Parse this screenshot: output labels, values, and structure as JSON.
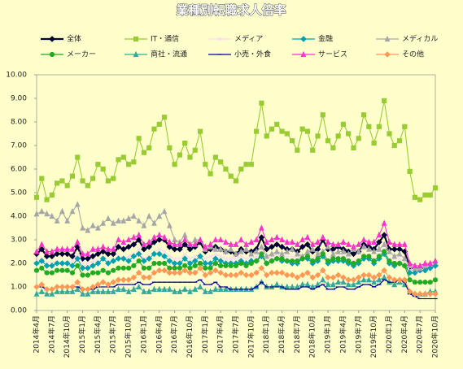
{
  "chart_data": {
    "type": "line",
    "title": "業種別転職求人倍率",
    "categories": [
      "2014年4月",
      null,
      null,
      "2014年7月",
      null,
      null,
      "2014年10月",
      null,
      null,
      "2015年1月",
      null,
      null,
      "2015年4月",
      null,
      null,
      "2015年7月",
      null,
      null,
      "2015年10月",
      null,
      null,
      "2016年1月",
      null,
      null,
      "2016年4月",
      null,
      null,
      "2016年7月",
      null,
      null,
      "2016年10月",
      null,
      null,
      "2017年1月",
      null,
      null,
      "2017年4月",
      null,
      null,
      "2017年7月",
      null,
      null,
      "2017年10月",
      null,
      null,
      "2018年1月",
      null,
      null,
      "2018年4月",
      null,
      null,
      "2018年7月",
      null,
      null,
      "2018年10月",
      null,
      null,
      "2019年1月",
      null,
      null,
      "2019年4月",
      null,
      null,
      "2019年7月",
      null,
      null,
      "2019年10月",
      null,
      null,
      "2020年1月",
      null,
      null,
      "2020年4月",
      null,
      null,
      "2020年7月",
      null,
      null,
      "2020年10月"
    ],
    "ylim": [
      0,
      10
    ],
    "yticks": [
      {
        "value": 0,
        "label": "0.00"
      },
      {
        "value": 1,
        "label": "1.00"
      },
      {
        "value": 2,
        "label": "2.00"
      },
      {
        "value": 3,
        "label": "3.00"
      },
      {
        "value": 4,
        "label": "4.00"
      },
      {
        "value": 5,
        "label": "5.00"
      },
      {
        "value": 6,
        "label": "6.00"
      },
      {
        "value": 7,
        "label": "7.00"
      },
      {
        "value": 8,
        "label": "8.00"
      },
      {
        "value": 9,
        "label": "9.00"
      },
      {
        "value": 10,
        "label": "10.00"
      }
    ],
    "grid": false,
    "series": [
      {
        "name": "全体",
        "color": "#000033",
        "marker": "diamond",
        "values": [
          2.4,
          2.6,
          2.3,
          2.3,
          2.4,
          2.4,
          2.4,
          2.3,
          2.7,
          2.2,
          2.2,
          2.3,
          2.4,
          2.5,
          2.4,
          2.4,
          2.7,
          2.6,
          2.7,
          2.8,
          3.0,
          2.6,
          2.7,
          2.9,
          3.0,
          3.0,
          2.7,
          2.6,
          2.6,
          2.8,
          2.6,
          2.7,
          2.9,
          2.5,
          2.6,
          2.7,
          2.6,
          2.5,
          2.5,
          2.4,
          2.6,
          2.5,
          2.5,
          2.6,
          3.1,
          2.6,
          2.7,
          2.8,
          2.7,
          2.6,
          2.6,
          2.5,
          2.7,
          2.8,
          2.5,
          2.6,
          3.0,
          2.6,
          2.6,
          2.7,
          2.6,
          2.5,
          2.4,
          2.5,
          2.8,
          2.7,
          2.6,
          2.9,
          3.2,
          2.6,
          2.6,
          2.6,
          2.5,
          1.8,
          1.8,
          1.8,
          1.8,
          1.8,
          1.9
        ]
      },
      {
        "name": "IT・通信",
        "color": "#99cc33",
        "marker": "square",
        "values": [
          4.8,
          5.6,
          4.7,
          4.9,
          5.4,
          5.5,
          5.3,
          5.7,
          6.5,
          5.5,
          5.3,
          5.6,
          6.2,
          6.0,
          5.5,
          5.6,
          6.4,
          6.5,
          6.2,
          6.3,
          7.3,
          6.7,
          6.9,
          7.7,
          7.9,
          8.2,
          6.9,
          6.2,
          6.6,
          7.1,
          6.5,
          6.8,
          7.6,
          6.2,
          5.8,
          6.5,
          6.3,
          6.0,
          5.7,
          5.5,
          6.0,
          6.2,
          6.2,
          7.6,
          8.8,
          7.4,
          7.7,
          7.9,
          7.6,
          7.5,
          7.2,
          6.8,
          7.7,
          7.6,
          6.8,
          7.4,
          8.3,
          7.2,
          6.9,
          7.4,
          7.9,
          7.5,
          6.9,
          7.3,
          8.3,
          7.8,
          7.1,
          7.8,
          8.9,
          7.5,
          7.0,
          7.2,
          7.8,
          5.9,
          4.8,
          4.7,
          4.9,
          4.9,
          5.2
        ]
      },
      {
        "name": "メディア",
        "color": "#ffd9f0",
        "marker": "x",
        "values": [
          2.1,
          2.2,
          2.0,
          2.0,
          2.1,
          2.0,
          2.1,
          2.1,
          2.4,
          2.0,
          2.0,
          2.1,
          2.1,
          2.2,
          2.1,
          2.1,
          2.3,
          2.2,
          2.3,
          2.4,
          2.6,
          2.2,
          2.3,
          2.5,
          2.6,
          2.5,
          2.3,
          2.2,
          2.2,
          2.4,
          2.2,
          2.3,
          2.4,
          2.2,
          2.3,
          2.4,
          2.3,
          2.2,
          2.2,
          2.2,
          2.3,
          2.2,
          2.2,
          2.3,
          2.6,
          2.2,
          2.3,
          2.4,
          2.3,
          2.3,
          2.3,
          2.2,
          2.3,
          2.4,
          2.2,
          2.2,
          2.5,
          2.2,
          2.2,
          2.3,
          2.3,
          2.2,
          2.1,
          2.2,
          2.4,
          2.3,
          2.2,
          2.4,
          2.6,
          2.2,
          2.2,
          2.2,
          2.1,
          1.7,
          1.7,
          1.7,
          1.8,
          1.8,
          1.9
        ]
      },
      {
        "name": "金融",
        "color": "#00a0b0",
        "marker": "diamond",
        "values": [
          2.0,
          2.1,
          1.9,
          1.9,
          2.0,
          2.0,
          2.0,
          1.9,
          2.2,
          1.8,
          1.8,
          1.9,
          2.0,
          2.2,
          2.0,
          2.1,
          2.2,
          2.2,
          2.1,
          2.3,
          2.4,
          2.1,
          2.2,
          2.4,
          2.4,
          2.3,
          2.1,
          2.0,
          2.0,
          2.2,
          2.0,
          2.1,
          2.3,
          2.0,
          2.0,
          2.2,
          2.1,
          2.0,
          2.0,
          2.0,
          2.1,
          2.0,
          2.1,
          2.1,
          2.3,
          2.0,
          2.1,
          2.2,
          2.1,
          2.1,
          2.0,
          2.0,
          2.2,
          2.2,
          2.0,
          2.1,
          2.3,
          2.0,
          2.1,
          2.1,
          2.1,
          2.0,
          1.9,
          2.0,
          2.2,
          2.2,
          2.0,
          2.2,
          2.4,
          2.0,
          1.9,
          2.0,
          1.9,
          1.6,
          1.6,
          1.7,
          1.7,
          1.8,
          1.9
        ]
      },
      {
        "name": "メディカル",
        "color": "#a6a6a6",
        "marker": "triangle",
        "values": [
          4.1,
          4.2,
          4.1,
          4.0,
          3.8,
          4.2,
          3.8,
          4.2,
          4.5,
          3.5,
          3.4,
          3.6,
          3.5,
          3.7,
          3.9,
          3.7,
          3.8,
          3.8,
          3.9,
          4.0,
          3.8,
          3.6,
          4.0,
          3.7,
          4.0,
          4.2,
          3.6,
          3.0,
          2.9,
          3.2,
          2.8,
          3.0,
          3.0,
          2.6,
          2.7,
          2.6,
          2.6,
          2.5,
          2.6,
          2.4,
          2.5,
          2.6,
          2.4,
          2.5,
          2.7,
          2.3,
          2.4,
          2.5,
          2.4,
          2.5,
          2.6,
          2.4,
          2.3,
          2.5,
          2.6,
          2.4,
          2.5,
          2.7,
          2.4,
          2.5,
          2.5,
          2.4,
          2.6,
          2.5,
          2.7,
          2.6,
          2.5,
          2.6,
          2.8,
          2.5,
          2.3,
          2.4,
          2.2,
          1.9,
          1.8,
          1.8,
          1.9,
          2.0,
          2.1
        ]
      },
      {
        "name": "メーカー",
        "color": "#22aa22",
        "marker": "circle",
        "values": [
          1.7,
          1.8,
          1.6,
          1.6,
          1.7,
          1.7,
          1.7,
          1.6,
          1.9,
          1.5,
          1.5,
          1.6,
          1.6,
          1.7,
          1.6,
          1.7,
          1.8,
          1.8,
          1.8,
          1.9,
          2.1,
          1.8,
          1.8,
          2.0,
          2.0,
          2.0,
          1.8,
          1.8,
          1.8,
          1.9,
          1.8,
          1.9,
          2.0,
          1.8,
          1.8,
          2.0,
          1.9,
          1.9,
          1.9,
          1.9,
          2.0,
          1.9,
          2.0,
          2.1,
          2.4,
          2.0,
          2.1,
          2.2,
          2.2,
          2.1,
          2.1,
          2.1,
          2.2,
          2.3,
          2.1,
          2.2,
          2.4,
          2.1,
          2.2,
          2.2,
          2.2,
          2.1,
          2.0,
          2.1,
          2.3,
          2.3,
          2.1,
          2.3,
          2.5,
          2.1,
          2.0,
          2.0,
          1.9,
          1.3,
          1.2,
          1.2,
          1.2,
          1.2,
          1.3
        ]
      },
      {
        "name": "商社・流通",
        "color": "#33aa99",
        "marker": "triangle",
        "values": [
          0.7,
          0.8,
          0.7,
          0.7,
          0.8,
          0.8,
          0.8,
          0.8,
          0.9,
          0.7,
          0.7,
          0.8,
          0.8,
          0.8,
          0.8,
          0.8,
          0.9,
          0.9,
          0.8,
          0.9,
          1.0,
          0.8,
          0.8,
          0.9,
          0.9,
          0.9,
          0.9,
          0.8,
          0.8,
          0.9,
          0.8,
          0.9,
          1.0,
          0.8,
          0.8,
          0.9,
          0.9,
          0.9,
          0.9,
          0.9,
          0.9,
          0.9,
          0.9,
          1.0,
          1.2,
          1.0,
          1.0,
          1.1,
          1.0,
          1.0,
          1.0,
          1.0,
          1.1,
          1.1,
          1.0,
          1.1,
          1.3,
          1.1,
          1.1,
          1.2,
          1.2,
          1.1,
          1.1,
          1.2,
          1.3,
          1.3,
          1.2,
          1.3,
          1.4,
          1.2,
          1.1,
          1.2,
          1.1,
          0.8,
          0.7,
          0.7,
          0.7,
          0.8,
          0.8
        ]
      },
      {
        "name": "小売・外食",
        "color": "#000099",
        "marker": "dash",
        "values": [
          1.0,
          1.0,
          0.9,
          0.9,
          1.0,
          1.0,
          1.0,
          1.0,
          1.0,
          0.9,
          0.9,
          0.9,
          1.0,
          1.0,
          1.0,
          1.0,
          1.1,
          1.1,
          1.1,
          1.1,
          1.2,
          1.1,
          1.1,
          1.2,
          1.2,
          1.2,
          1.2,
          1.2,
          1.2,
          1.2,
          1.2,
          1.2,
          1.3,
          1.1,
          1.1,
          1.2,
          1.0,
          1.0,
          0.9,
          0.9,
          0.9,
          0.9,
          0.9,
          1.0,
          1.2,
          1.0,
          1.0,
          1.0,
          1.0,
          0.9,
          0.9,
          0.9,
          1.0,
          1.0,
          0.9,
          1.0,
          1.1,
          0.9,
          0.9,
          1.0,
          1.0,
          0.9,
          0.9,
          1.0,
          1.1,
          1.1,
          1.0,
          1.1,
          1.3,
          1.2,
          1.2,
          1.3,
          1.2,
          0.7,
          0.6,
          0.5,
          0.5,
          0.5,
          0.5
        ]
      },
      {
        "name": "サービス",
        "color": "#ff33cc",
        "marker": "triangle",
        "values": [
          2.5,
          2.8,
          2.5,
          2.5,
          2.6,
          2.6,
          2.6,
          2.6,
          2.9,
          2.4,
          2.4,
          2.6,
          2.6,
          2.7,
          2.6,
          2.6,
          3.0,
          2.9,
          3.0,
          3.1,
          3.2,
          2.8,
          2.9,
          3.1,
          3.2,
          3.1,
          2.9,
          2.8,
          2.8,
          3.0,
          2.8,
          2.8,
          3.0,
          2.7,
          2.8,
          3.0,
          3.0,
          2.9,
          2.8,
          2.8,
          3.0,
          2.8,
          2.9,
          3.0,
          3.5,
          2.9,
          3.0,
          3.1,
          3.0,
          2.9,
          2.9,
          2.8,
          3.0,
          3.1,
          2.8,
          2.9,
          3.1,
          2.9,
          2.8,
          2.8,
          2.9,
          2.8,
          2.7,
          2.8,
          3.0,
          2.9,
          2.9,
          3.2,
          3.7,
          2.9,
          2.8,
          2.8,
          2.8,
          2.0,
          1.9,
          1.9,
          2.0,
          2.0,
          2.1
        ]
      },
      {
        "name": "その他",
        "color": "#ff9955",
        "marker": "diamond",
        "values": [
          1.0,
          1.1,
          0.9,
          0.9,
          1.0,
          1.0,
          1.0,
          1.0,
          1.2,
          0.9,
          0.9,
          1.0,
          1.1,
          1.2,
          1.1,
          1.2,
          1.3,
          1.3,
          1.3,
          1.4,
          1.6,
          1.4,
          1.4,
          1.6,
          1.7,
          1.7,
          1.6,
          1.6,
          1.6,
          1.7,
          1.6,
          1.6,
          1.8,
          1.5,
          1.6,
          1.7,
          1.6,
          1.5,
          1.5,
          1.5,
          1.6,
          1.5,
          1.5,
          1.6,
          1.8,
          1.5,
          1.6,
          1.6,
          1.6,
          1.5,
          1.5,
          1.4,
          1.5,
          1.6,
          1.4,
          1.5,
          1.7,
          1.4,
          1.4,
          1.5,
          1.4,
          1.3,
          1.3,
          1.4,
          1.5,
          1.5,
          1.4,
          1.5,
          1.7,
          1.4,
          1.3,
          1.3,
          1.3,
          0.8,
          0.7,
          0.7,
          0.7,
          0.7,
          0.7
        ]
      }
    ]
  }
}
